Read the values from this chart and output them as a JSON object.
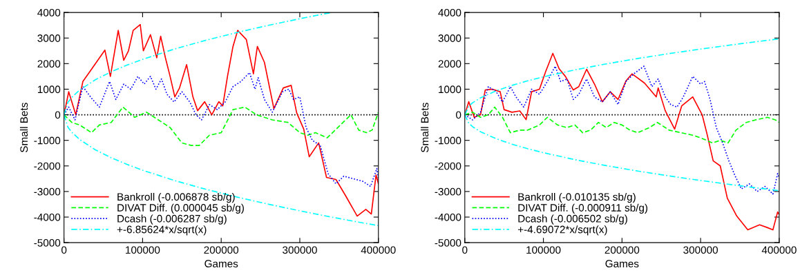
{
  "chart_data": [
    {
      "type": "line",
      "xlabel": "Games",
      "ylabel": "Small Bets",
      "xlim": [
        0,
        400000
      ],
      "ylim": [
        -5000,
        4000
      ],
      "xticks": [
        0,
        100000,
        200000,
        300000,
        400000
      ],
      "yticks": [
        -5000,
        -4000,
        -3000,
        -2000,
        -1000,
        0,
        1000,
        2000,
        3000,
        4000
      ],
      "grid": false,
      "legend": "bottom left",
      "ref_lines": [
        {
          "axis": "y",
          "value": 0,
          "color": "#000000",
          "line_style": "dotted"
        }
      ],
      "series": [
        {
          "name": "Bankroll (-0.006878 sb/g)",
          "color": "#ff0000",
          "line_style": "solid",
          "x": [
            0,
            6000,
            15000,
            24000,
            35000,
            52000,
            59000,
            69000,
            76000,
            82000,
            88000,
            97000,
            101000,
            110000,
            118000,
            123000,
            129000,
            135000,
            141000,
            147000,
            156000,
            164000,
            170000,
            179000,
            188000,
            197000,
            202000,
            208000,
            215000,
            221000,
            232000,
            241000,
            246000,
            255000,
            267000,
            279000,
            289000,
            296000,
            305000,
            312000,
            324000,
            334000,
            346000,
            358000,
            373000,
            384000,
            391000,
            397000,
            400000
          ],
          "values": [
            0,
            900,
            0,
            1300,
            1780,
            2530,
            1500,
            3300,
            2130,
            2500,
            3300,
            3530,
            2500,
            3130,
            2230,
            3070,
            2230,
            1500,
            700,
            1050,
            1960,
            700,
            160,
            510,
            0,
            510,
            350,
            1500,
            2670,
            3300,
            2940,
            1600,
            2670,
            2050,
            240,
            1050,
            1150,
            80,
            -560,
            -1640,
            -1100,
            -2450,
            -2530,
            -3150,
            -3960,
            -3700,
            -3880,
            -2350,
            -2700
          ]
        },
        {
          "name": "DIVAT Diff. (0.000045 sb/g)",
          "color": "#00ff00",
          "line_style": "dashed",
          "x": [
            0,
            10000,
            20000,
            35000,
            45000,
            60000,
            75000,
            90000,
            105000,
            120000,
            135000,
            150000,
            162000,
            172000,
            185000,
            200000,
            215000,
            230000,
            245000,
            265000,
            285000,
            300000,
            310000,
            320000,
            335000,
            345000,
            355000,
            365000,
            375000,
            385000,
            392000,
            400000
          ],
          "values": [
            0,
            -300,
            -400,
            -700,
            -400,
            -300,
            300,
            -100,
            100,
            -200,
            -500,
            -1100,
            -1200,
            -1200,
            -800,
            -700,
            200,
            300,
            0,
            -200,
            -300,
            -700,
            -800,
            -700,
            -900,
            -600,
            -300,
            0,
            -600,
            -700,
            -600,
            100
          ]
        },
        {
          "name": "Dcash (-0.006287 sb/g)",
          "color": "#0000ff",
          "line_style": "dotted",
          "x": [
            0,
            6000,
            14000,
            24000,
            35000,
            45000,
            58000,
            66000,
            76000,
            85000,
            94000,
            102000,
            110000,
            117000,
            124000,
            131000,
            140000,
            150000,
            160000,
            168000,
            175000,
            185000,
            195000,
            205000,
            215000,
            225000,
            236000,
            243000,
            247000,
            255000,
            265000,
            278000,
            286000,
            292000,
            300000,
            308000,
            316000,
            326000,
            336000,
            346000,
            356000,
            368000,
            380000,
            390000,
            398000,
            400000
          ],
          "values": [
            0,
            300,
            -200,
            1100,
            650,
            300,
            1300,
            600,
            1200,
            1000,
            1500,
            1200,
            1500,
            1000,
            1400,
            800,
            500,
            900,
            500,
            0,
            -200,
            400,
            200,
            500,
            1100,
            1300,
            1650,
            1000,
            1450,
            600,
            100,
            900,
            1000,
            600,
            700,
            -500,
            -1000,
            -1200,
            -2300,
            -2700,
            -2400,
            -2500,
            -2600,
            -2800,
            -2100,
            -2500
          ]
        },
        {
          "name": "+-6.85624*x/sqrt(x)",
          "color": "#00ffff",
          "line_style": "dashdot",
          "x": [
            0,
            5000,
            10000,
            20000,
            40000,
            60000,
            80000,
            100000,
            140000,
            180000,
            220000,
            260000,
            300000,
            340000
          ],
          "values": [
            0,
            485,
            686,
            970,
            1371,
            1679,
            1939,
            2168,
            2565,
            2909,
            3216,
            3496,
            3755,
            3998
          ]
        },
        {
          "color": "#00ffff",
          "line_style": "dashdot",
          "x": [
            0,
            5000,
            10000,
            20000,
            40000,
            60000,
            80000,
            100000,
            140000,
            180000,
            220000,
            260000,
            300000,
            340000,
            370000,
            400000
          ],
          "values": [
            0,
            -485,
            -686,
            -970,
            -1371,
            -1679,
            -1939,
            -2168,
            -2565,
            -2909,
            -3216,
            -3496,
            -3755,
            -3998,
            -4171,
            -4336
          ]
        }
      ]
    },
    {
      "type": "line",
      "xlabel": "Games",
      "ylabel": "Small Bets",
      "xlim": [
        0,
        400000
      ],
      "ylim": [
        -5000,
        4000
      ],
      "xticks": [
        0,
        100000,
        200000,
        300000,
        400000
      ],
      "yticks": [
        -5000,
        -4000,
        -3000,
        -2000,
        -1000,
        0,
        1000,
        2000,
        3000,
        4000
      ],
      "grid": false,
      "legend": "bottom left",
      "ref_lines": [
        {
          "axis": "y",
          "value": 0,
          "color": "#000000",
          "line_style": "dotted"
        }
      ],
      "series": [
        {
          "name": "Bankroll (-0.010135 sb/g)",
          "color": "#ff0000",
          "line_style": "solid",
          "x": [
            0,
            5000,
            12000,
            20000,
            26000,
            35000,
            45000,
            50000,
            60000,
            70000,
            78000,
            85000,
            95000,
            103000,
            112000,
            120000,
            128000,
            138000,
            145000,
            155000,
            165000,
            175000,
            185000,
            195000,
            205000,
            212700,
            228600,
            243500,
            246000,
            255000,
            267000,
            276000,
            290000,
            302000,
            308000,
            316000,
            325000,
            334000,
            346000,
            360000,
            375000,
            384000,
            392000,
            398000,
            400000
          ],
          "values": [
            0,
            510,
            -100,
            0,
            970,
            1000,
            900,
            200,
            100,
            150,
            -190,
            900,
            1000,
            1700,
            2400,
            1800,
            1500,
            970,
            1100,
            1780,
            1200,
            510,
            900,
            600,
            1320,
            1600,
            1240,
            700,
            1050,
            160,
            -560,
            350,
            700,
            0,
            -730,
            -1800,
            -2000,
            -3260,
            -3960,
            -4500,
            -4300,
            -4400,
            -4500,
            -3800,
            -3900
          ]
        },
        {
          "name": "DIVAT Diff. (-0.000911 sb/g)",
          "color": "#00ff00",
          "line_style": "dashed",
          "x": [
            0,
            10000,
            20000,
            30000,
            38000,
            48000,
            58000,
            70000,
            80000,
            95000,
            105000,
            118000,
            130000,
            140000,
            150000,
            160000,
            170000,
            180000,
            190000,
            200000,
            210000,
            220000,
            235000,
            245000,
            260000,
            275000,
            290000,
            300000,
            315000,
            325000,
            335000,
            345000,
            358000,
            370000,
            385000,
            395000,
            400000
          ],
          "values": [
            0,
            100,
            -100,
            0,
            300,
            -100,
            -700,
            -600,
            -600,
            -400,
            -100,
            -400,
            -500,
            -400,
            -700,
            -600,
            -300,
            -500,
            -300,
            -400,
            -600,
            -700,
            -500,
            -300,
            -600,
            -700,
            -800,
            -900,
            -1100,
            -1000,
            -1100,
            -600,
            -300,
            -200,
            -100,
            -200,
            -300
          ]
        },
        {
          "name": "Dcash (-0.006502 sb/g)",
          "color": "#0000ff",
          "line_style": "dotted",
          "x": [
            0,
            10000,
            20000,
            30000,
            40000,
            48000,
            58000,
            65000,
            75000,
            85000,
            95000,
            105000,
            115000,
            122000,
            130000,
            138000,
            145000,
            155000,
            165000,
            175000,
            185000,
            195000,
            205000,
            215000,
            228000,
            238000,
            246000,
            255000,
            262000,
            270000,
            278000,
            290000,
            300000,
            305000,
            312000,
            320000,
            328000,
            336000,
            344000,
            352000,
            362000,
            372000,
            382000,
            392000,
            398000,
            400000
          ],
          "values": [
            0,
            -200,
            100,
            1100,
            900,
            500,
            1100,
            700,
            300,
            1000,
            800,
            1300,
            1900,
            1300,
            1400,
            600,
            800,
            1400,
            700,
            500,
            900,
            400,
            1300,
            1600,
            1900,
            1100,
            1400,
            700,
            400,
            300,
            700,
            1500,
            1200,
            1300,
            600,
            -500,
            -1100,
            -1800,
            -2400,
            -2900,
            -2700,
            -3000,
            -2800,
            -3100,
            -2300,
            -2500
          ]
        },
        {
          "name": "+-4.69072*x/sqrt(x)",
          "color": "#00ffff",
          "line_style": "dashdot",
          "x": [
            0,
            5000,
            10000,
            20000,
            40000,
            60000,
            80000,
            100000,
            140000,
            180000,
            220000,
            260000,
            300000,
            340000,
            370000,
            400000
          ],
          "values": [
            0,
            332,
            469,
            663,
            938,
            1149,
            1327,
            1483,
            1755,
            1990,
            2200,
            2392,
            2569,
            2735,
            2853,
            2967
          ]
        },
        {
          "color": "#00ffff",
          "line_style": "dashdot",
          "x": [
            0,
            5000,
            10000,
            20000,
            40000,
            60000,
            80000,
            100000,
            140000,
            180000,
            220000,
            260000,
            300000,
            340000,
            370000,
            400000
          ],
          "values": [
            0,
            -332,
            -469,
            -663,
            -938,
            -1149,
            -1327,
            -1483,
            -1755,
            -1990,
            -2200,
            -2392,
            -2569,
            -2735,
            -2853,
            -2967
          ]
        }
      ]
    }
  ]
}
